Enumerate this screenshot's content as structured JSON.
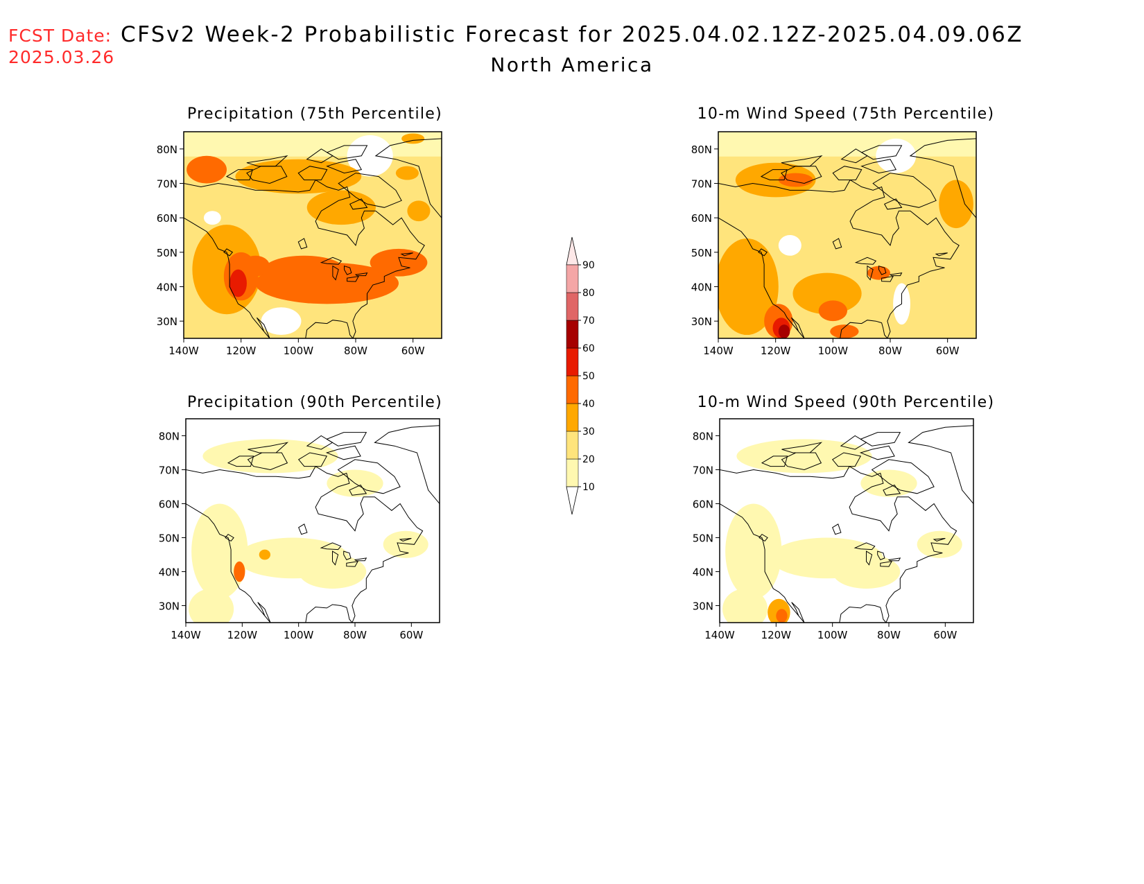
{
  "header": {
    "fcst_label": "FCST Date:",
    "fcst_date": "2025.03.26",
    "title": "CFSv2 Week-2 Probabilistic Forecast for 2025.04.02.12Z-2025.04.09.06Z",
    "subtitle": "North America"
  },
  "panels": [
    {
      "title": "Precipitation (75th Percentile)",
      "blobs": [
        {
          "lon": -125,
          "lat": 45,
          "rx": 12,
          "ry": 13,
          "level": 2
        },
        {
          "lon": -120,
          "lat": 43,
          "rx": 6,
          "ry": 7,
          "level": 3
        },
        {
          "lon": -121,
          "lat": 41,
          "rx": 3,
          "ry": 4,
          "level": 4
        },
        {
          "lon": -115,
          "lat": 46,
          "rx": 5,
          "ry": 3,
          "level": 3
        },
        {
          "lon": -90,
          "lat": 41,
          "rx": 25,
          "ry": 6,
          "level": 3
        },
        {
          "lon": -98,
          "lat": 45,
          "rx": 14,
          "ry": 4,
          "level": 3
        },
        {
          "lon": -65,
          "lat": 47,
          "rx": 10,
          "ry": 4,
          "level": 3
        },
        {
          "lon": -132,
          "lat": 74,
          "rx": 7,
          "ry": 4,
          "level": 3
        },
        {
          "lon": -100,
          "lat": 72,
          "rx": 22,
          "ry": 5,
          "level": 2
        },
        {
          "lon": -85,
          "lat": 63,
          "rx": 12,
          "ry": 5,
          "level": 2
        },
        {
          "lon": -58,
          "lat": 62,
          "rx": 4,
          "ry": 3,
          "level": 2
        },
        {
          "lon": -62,
          "lat": 73,
          "rx": 4,
          "ry": 2,
          "level": 2
        },
        {
          "lon": -60,
          "lat": 83,
          "rx": 4,
          "ry": 1.5,
          "level": 2
        }
      ],
      "voids": [
        {
          "lon": -106,
          "lat": 30,
          "rx": 7,
          "ry": 4
        },
        {
          "lon": -75,
          "lat": 78,
          "rx": 8,
          "ry": 6
        },
        {
          "lon": -130,
          "lat": 60,
          "rx": 3,
          "ry": 2
        }
      ]
    },
    {
      "title": "10-m Wind Speed (75th Percentile)",
      "blobs": [
        {
          "lon": -130,
          "lat": 40,
          "rx": 11,
          "ry": 14,
          "level": 2
        },
        {
          "lon": -119,
          "lat": 30,
          "rx": 5,
          "ry": 5,
          "level": 3
        },
        {
          "lon": -118,
          "lat": 28,
          "rx": 3,
          "ry": 3,
          "level": 4
        },
        {
          "lon": -117,
          "lat": 27,
          "rx": 2,
          "ry": 2,
          "level": 5
        },
        {
          "lon": -102,
          "lat": 38,
          "rx": 12,
          "ry": 6,
          "level": 2
        },
        {
          "lon": -100,
          "lat": 33,
          "rx": 5,
          "ry": 3,
          "level": 3
        },
        {
          "lon": -96,
          "lat": 27,
          "rx": 5,
          "ry": 2,
          "level": 3
        },
        {
          "lon": -84,
          "lat": 44,
          "rx": 4,
          "ry": 2,
          "level": 3
        },
        {
          "lon": -120,
          "lat": 71,
          "rx": 14,
          "ry": 5,
          "level": 2
        },
        {
          "lon": -113,
          "lat": 71,
          "rx": 6,
          "ry": 2,
          "level": 3
        },
        {
          "lon": -57,
          "lat": 64,
          "rx": 6,
          "ry": 7,
          "level": 2
        }
      ],
      "voids": [
        {
          "lon": -76,
          "lat": 35,
          "rx": 3,
          "ry": 6
        },
        {
          "lon": -78,
          "lat": 78,
          "rx": 7,
          "ry": 5
        },
        {
          "lon": -115,
          "lat": 52,
          "rx": 4,
          "ry": 3
        }
      ]
    },
    {
      "title": "Precipitation (90th Percentile)",
      "blobs": [
        {
          "lon": -121,
          "lat": 40,
          "rx": 2,
          "ry": 3,
          "level": 3
        },
        {
          "lon": -112,
          "lat": 45,
          "rx": 2,
          "ry": 1.5,
          "level": 2
        }
      ],
      "voids": []
    },
    {
      "title": "10-m Wind Speed (90th Percentile)",
      "blobs": [
        {
          "lon": -119,
          "lat": 28,
          "rx": 4,
          "ry": 4,
          "level": 2
        },
        {
          "lon": -118,
          "lat": 27,
          "rx": 2,
          "ry": 2,
          "level": 3
        }
      ],
      "voids": []
    }
  ],
  "axes": {
    "lat_ticks": [
      "30N",
      "40N",
      "50N",
      "60N",
      "70N",
      "80N"
    ],
    "lon_ticks": [
      "140W",
      "120W",
      "100W",
      "80W",
      "60W"
    ]
  },
  "colorbar": {
    "labels": [
      "10",
      "20",
      "30",
      "40",
      "50",
      "60",
      "70",
      "80",
      "90"
    ],
    "colors": [
      "#ffffff",
      "#fff8b0",
      "#ffe47c",
      "#ffa800",
      "#ff6a00",
      "#e81b00",
      "#a60000",
      "#e06666",
      "#f4a6a6",
      "#fde8e8"
    ]
  }
}
